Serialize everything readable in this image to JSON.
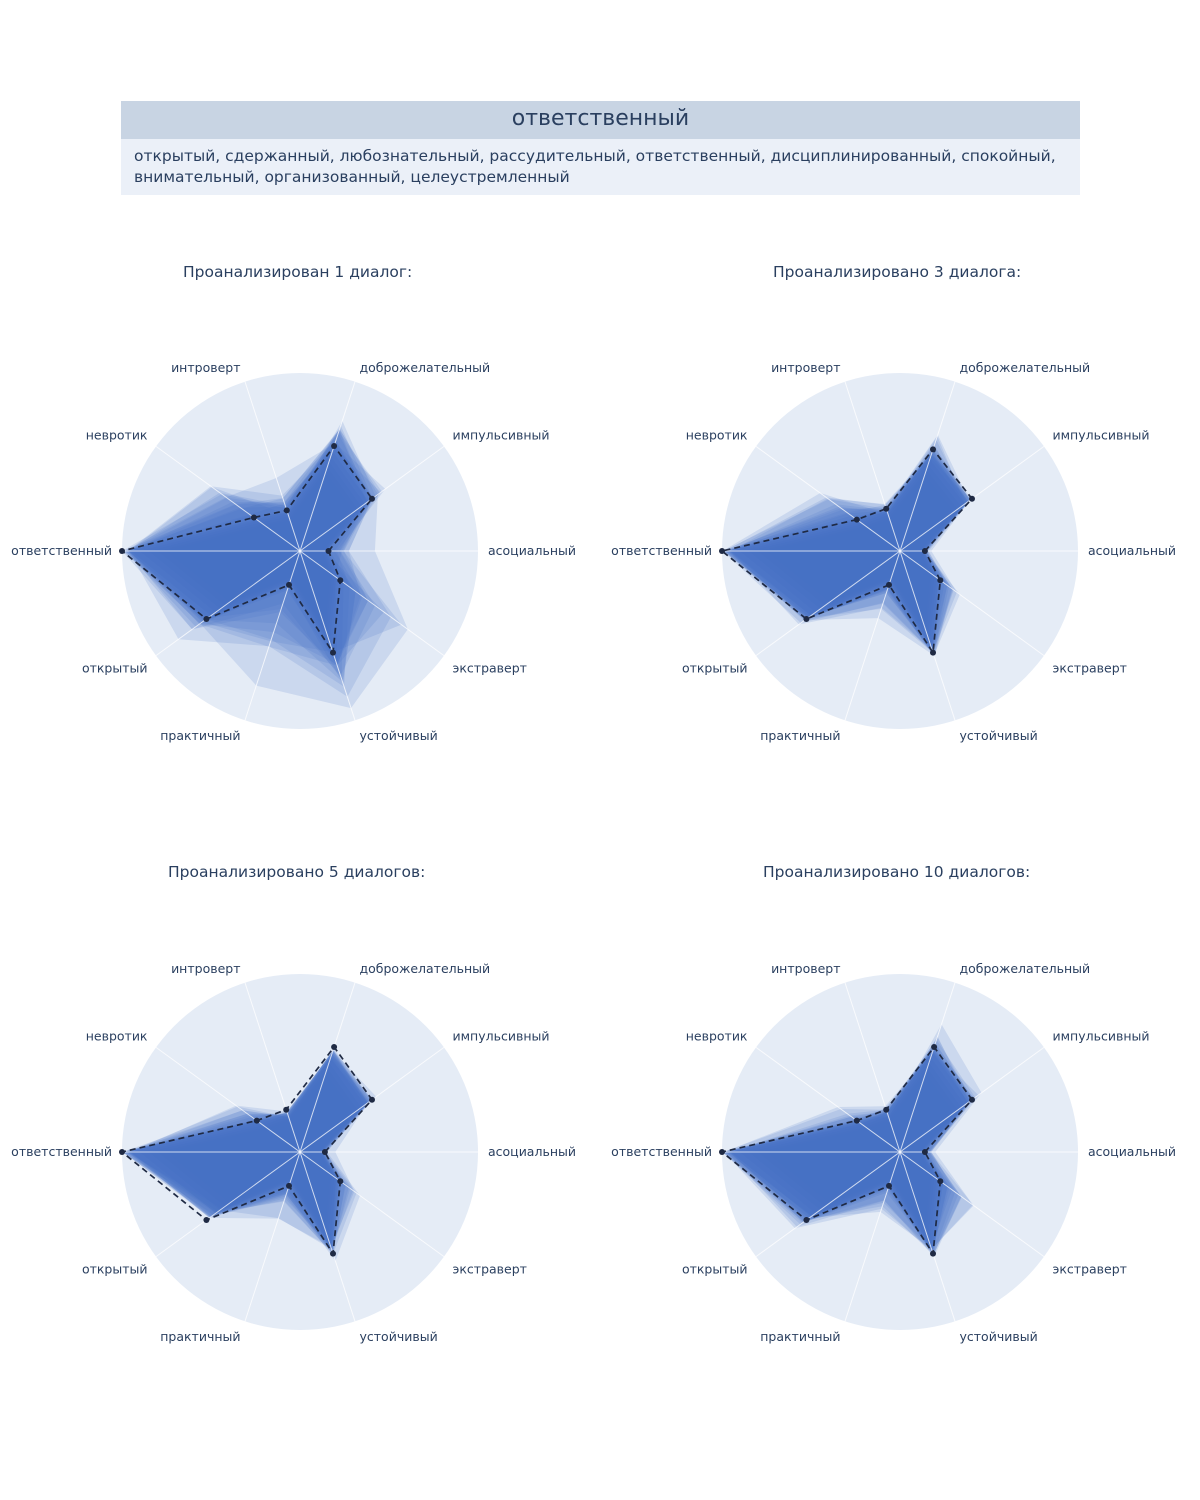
{
  "header": {
    "title": "ответственный",
    "traits": "открытый, сдержанный, любознательный, рассудительный, ответственный, дисциплинированный, спокойный, внимательный, организованный, целеустремленный"
  },
  "colors": {
    "background_circle": "#e5ecf6",
    "fill": "#4472c4",
    "reference_line": "#1f2a44",
    "header_title_bg": "#c8d4e3",
    "header_body_bg": "#ebf0f8",
    "text": "#2a3f5f"
  },
  "chart_data": [
    {
      "type": "radar",
      "title": "Проанализирован 1 диалог:",
      "axes": [
        "асоциальный",
        "импульсивный",
        "доброжелательный",
        "интроверт",
        "невротик",
        "ответственный",
        "открытый",
        "практичный",
        "устойчивый",
        "экстраверт"
      ],
      "rlim": [
        0,
        1
      ],
      "reference": [
        0.16,
        0.5,
        0.62,
        0.24,
        0.32,
        1.0,
        0.65,
        0.2,
        0.6,
        0.28
      ],
      "envelope": [
        0.45,
        0.65,
        0.95,
        0.45,
        0.85,
        1.0,
        0.95,
        0.95,
        1.0,
        0.95
      ]
    },
    {
      "type": "radar",
      "title": "Проанализировано 3 диалога:",
      "axes": [
        "асоциальный",
        "импульсивный",
        "доброжелательный",
        "интроверт",
        "невротик",
        "ответственный",
        "открытый",
        "практичный",
        "устойчивый",
        "экстраверт"
      ],
      "rlim": [
        0,
        1
      ],
      "reference": [
        0.14,
        0.5,
        0.6,
        0.25,
        0.3,
        1.0,
        0.65,
        0.2,
        0.6,
        0.28
      ],
      "envelope": [
        0.2,
        0.5,
        0.75,
        0.3,
        0.65,
        1.0,
        0.75,
        0.45,
        0.7,
        0.5
      ]
    },
    {
      "type": "radar",
      "title": "Проанализировано 5 диалогов:",
      "axes": [
        "асоциальный",
        "импульсивный",
        "доброжелательный",
        "интроверт",
        "невротик",
        "ответственный",
        "открытый",
        "практичный",
        "устойчивый",
        "экстраверт"
      ],
      "rlim": [
        0,
        1
      ],
      "reference": [
        0.14,
        0.5,
        0.62,
        0.25,
        0.3,
        1.0,
        0.65,
        0.2,
        0.6,
        0.28
      ],
      "envelope": [
        0.2,
        0.55,
        0.6,
        0.22,
        0.5,
        1.0,
        0.55,
        0.45,
        0.65,
        0.45
      ]
    },
    {
      "type": "radar",
      "title": "Проанализировано 10 диалогов:",
      "axes": [
        "асоциальный",
        "импульсивный",
        "доброжелательный",
        "интроверт",
        "невротик",
        "ответственный",
        "открытый",
        "практичный",
        "устойчивый",
        "экстраверт"
      ],
      "rlim": [
        0,
        1
      ],
      "reference": [
        0.14,
        0.5,
        0.62,
        0.25,
        0.3,
        1.0,
        0.65,
        0.2,
        0.6,
        0.28
      ],
      "envelope": [
        0.22,
        0.6,
        0.78,
        0.28,
        0.45,
        1.0,
        0.75,
        0.45,
        0.65,
        0.6
      ]
    }
  ]
}
